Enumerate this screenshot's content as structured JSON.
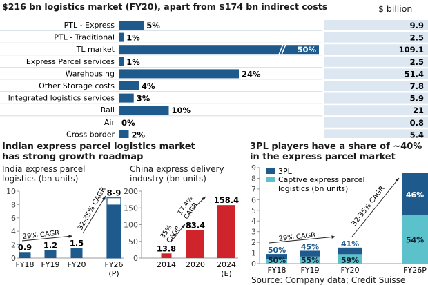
{
  "chart_data": [
    {
      "type": "bar",
      "orientation": "horizontal",
      "title": "$216 bn logistics market (FY20), apart from $174 bn indirect costs",
      "value_column_header": "$ billion",
      "categories": [
        "PTL - Express",
        "PTL - Traditional",
        "TL market",
        "Express Parcel services",
        "Warehousing",
        "Other Storage costs",
        "Integrated logistics services",
        "Rail",
        "Air",
        "Cross border"
      ],
      "share_labels": [
        "5%",
        "1%",
        "50%",
        "1%",
        "24%",
        "4%",
        "3%",
        "10%",
        "0%",
        "2%"
      ],
      "share_pct": [
        5,
        1,
        50,
        1,
        24,
        4,
        3,
        10,
        0,
        2
      ],
      "values_bn": [
        "9.9",
        "2.5",
        "109.1",
        "2.5",
        "51.4",
        "7.8",
        "5.9",
        "21",
        "0.8",
        "5.4"
      ],
      "broken_bar": "TL market",
      "color": "#1f5a8c"
    },
    {
      "type": "bar",
      "section_title": "Indian express parcel logistics market has strong growth roadmap",
      "title": "India express parcel logistics (bn units)",
      "categories": [
        "FY18",
        "FY19",
        "FY20",
        "FY26"
      ],
      "category_sublabels": [
        "",
        "",
        "",
        "(P)"
      ],
      "values": [
        0.9,
        1.2,
        1.5,
        8
      ],
      "range_top": [
        null,
        null,
        null,
        9
      ],
      "data_labels": [
        "0.9",
        "1.2",
        "1.5",
        "8-9"
      ],
      "ylim": [
        0,
        10
      ],
      "yticks": [
        "0",
        "2",
        "4",
        "6",
        "8",
        "10"
      ],
      "annotations": [
        "29% CAGR",
        "32-35% CAGR"
      ],
      "color": "#1f5a8c"
    },
    {
      "type": "bar",
      "title": "China express delivery industry (bn units)",
      "categories": [
        "2014",
        "2020",
        "2024"
      ],
      "category_sublabels": [
        "",
        "",
        "(E)"
      ],
      "values": [
        13.8,
        83.4,
        158.4
      ],
      "data_labels": [
        "13.8",
        "83.4",
        "158.4"
      ],
      "ylim": [
        0,
        200
      ],
      "yticks": [
        "0",
        "50",
        "100",
        "150",
        "200"
      ],
      "annotations": [
        "35% CAGR",
        "17.4% CAGR"
      ],
      "color": "#d0242c"
    },
    {
      "type": "bar",
      "stacked": true,
      "title": "3PL players have a share of ~40% in the express parcel market",
      "categories": [
        "FY18",
        "FY19",
        "FY20",
        "FY26P"
      ],
      "totals": [
        0.9,
        1.2,
        1.5,
        8.5
      ],
      "series": [
        {
          "name": "Captive express parcel logistics (bn units)",
          "share_labels": [
            "50%",
            "55%",
            "59%",
            "54%"
          ],
          "shares": [
            50,
            55,
            59,
            54
          ],
          "color": "#5bc2cc"
        },
        {
          "name": "3PL",
          "share_labels": [
            "50%",
            "45%",
            "41%",
            "46%"
          ],
          "shares": [
            50,
            45,
            41,
            46
          ],
          "color": "#1f5a8c"
        }
      ],
      "ylim": [
        0,
        9
      ],
      "yticks": [
        "0",
        "1",
        "2",
        "3",
        "4",
        "5",
        "6",
        "7",
        "8",
        "9"
      ],
      "annotations": [
        "29% CAGR",
        "32-35% CAGR"
      ],
      "legend": "top-left",
      "source": "Source: Company data; Credit Suisse"
    }
  ]
}
